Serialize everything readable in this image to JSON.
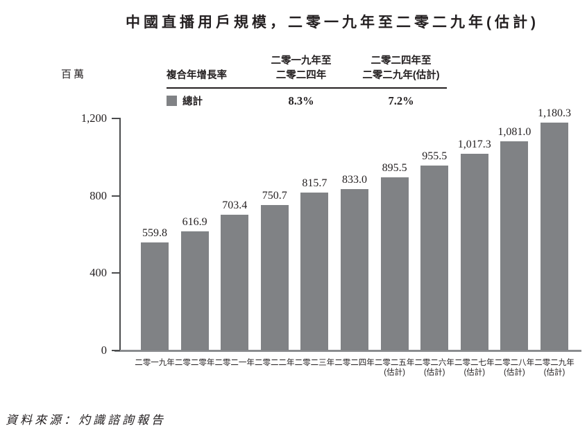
{
  "title": "中國直播用戶規模，二零一九年至二零二九年(估計)",
  "unit_label": "百萬",
  "legend_table": {
    "row_header": "複合年增長率",
    "col1_header_line1": "二零一九年至",
    "col1_header_line2": "二零二四年",
    "col2_header_line1": "二零二四年至",
    "col2_header_line2": "二零二九年(估計)",
    "series_label": "總計",
    "col1_value": "8.3%",
    "col2_value": "7.2%",
    "swatch_color": "#808285"
  },
  "source": "資料來源：灼識諮詢報告",
  "chart_data": {
    "type": "bar",
    "title": "中國直播用戶規模，二零一九年至二零二九年(估計)",
    "ylabel": "百萬",
    "ylim": [
      0,
      1200
    ],
    "grid": false,
    "bar_color": "#808285",
    "legend_entries": [
      "總計"
    ],
    "annotations": {
      "cagr_label": "複合年增長率",
      "cagr_2019_2024": "8.3%",
      "cagr_2024_2029_estimate": "7.2%"
    },
    "y_ticks": [
      {
        "value": 1200,
        "label": "1,200"
      },
      {
        "value": 800,
        "label": "800"
      },
      {
        "value": 400,
        "label": "400"
      },
      {
        "value": 0,
        "label": "0"
      }
    ],
    "bars": [
      {
        "category": "二零一九年",
        "category_line2": "",
        "value": 559.8,
        "display": "559.8"
      },
      {
        "category": "二零二零年",
        "category_line2": "",
        "value": 616.9,
        "display": "616.9"
      },
      {
        "category": "二零二一年",
        "category_line2": "",
        "value": 703.4,
        "display": "703.4"
      },
      {
        "category": "二零二二年",
        "category_line2": "",
        "value": 750.7,
        "display": "750.7"
      },
      {
        "category": "二零二三年",
        "category_line2": "",
        "value": 815.7,
        "display": "815.7"
      },
      {
        "category": "二零二四年",
        "category_line2": "",
        "value": 833.0,
        "display": "833.0"
      },
      {
        "category": "二零二五年",
        "category_line2": "(估計)",
        "value": 895.5,
        "display": "895.5"
      },
      {
        "category": "二零二六年",
        "category_line2": "(估計)",
        "value": 955.5,
        "display": "955.5"
      },
      {
        "category": "二零二七年",
        "category_line2": "(估計)",
        "value": 1017.3,
        "display": "1,017.3"
      },
      {
        "category": "二零二八年",
        "category_line2": "(估計)",
        "value": 1081.0,
        "display": "1,081.0"
      },
      {
        "category": "二零二九年",
        "category_line2": "(估計)",
        "value": 1180.3,
        "display": "1,180.3"
      }
    ]
  }
}
